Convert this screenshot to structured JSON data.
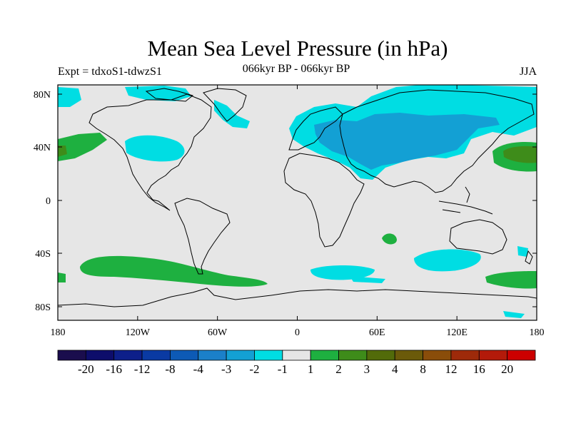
{
  "title": "Mean Sea Level Pressure (in hPa)",
  "subtitle": "066kyr BP - 066kyr BP",
  "left_label": "Expt = tdxoS1-tdwzS1",
  "right_label": "JJA",
  "latitude_labels": [
    "80N",
    "40N",
    "0",
    "40S",
    "80S"
  ],
  "longitude_labels": [
    "180",
    "120W",
    "60W",
    "0",
    "60E",
    "120E",
    "180"
  ],
  "colorbar": {
    "colors": [
      "#1a0d4d",
      "#0d0d6b",
      "#0d1f8a",
      "#0a3aa3",
      "#0d5ab5",
      "#1b80c9",
      "#13a0d4",
      "#00dde3",
      "#e6e6e6",
      "#1eb040",
      "#3e8c1a",
      "#526b0a",
      "#6b5a0a",
      "#8a4d0a",
      "#9e2a0a",
      "#b31a0a",
      "#cc0000"
    ],
    "labels": [
      "-20",
      "-16",
      "-12",
      "-8",
      "-4",
      "-3",
      "-2",
      "-1",
      "1",
      "2",
      "3",
      "4",
      "8",
      "12",
      "16",
      "20"
    ]
  },
  "colors": {
    "background_field": "#e6e6e6",
    "negative_1": "#00dde3",
    "negative_2": "#13a0d4",
    "positive_1": "#1eb040",
    "positive_2": "#3e8c1a",
    "positive_3": "#526b0a",
    "coast": "#000000"
  }
}
